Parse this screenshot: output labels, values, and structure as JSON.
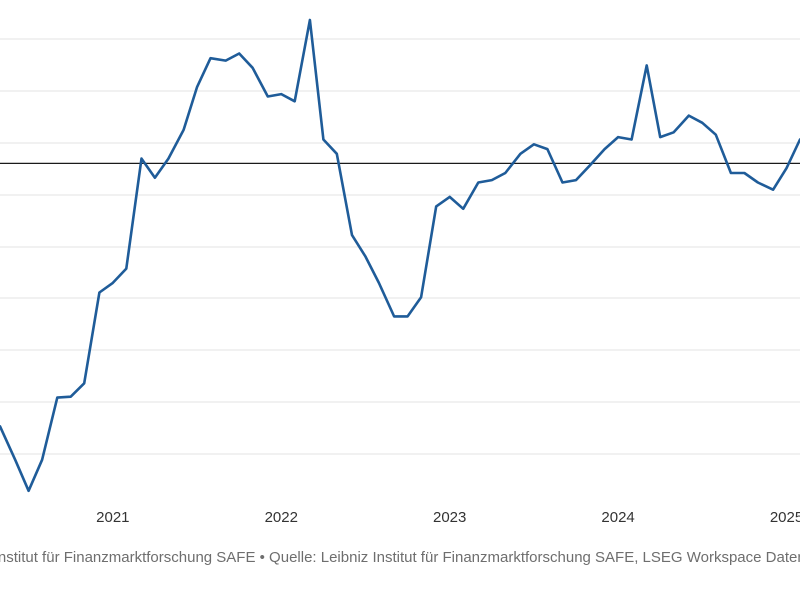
{
  "chart_data": {
    "type": "line",
    "x_tick_labels": [
      "2021",
      "2022",
      "2023",
      "2024",
      "2025"
    ],
    "x_range": [
      2020.33,
      2025.08
    ],
    "y_range": [
      0,
      100
    ],
    "reference_value": 70,
    "grid": true,
    "series": [
      {
        "color": "#1f5c99",
        "x": [
          2020.33,
          2020.42,
          2020.5,
          2020.58,
          2020.67,
          2020.75,
          2020.83,
          2020.92,
          2021.0,
          2021.08,
          2021.17,
          2021.25,
          2021.33,
          2021.42,
          2021.5,
          2021.58,
          2021.67,
          2021.75,
          2021.83,
          2021.92,
          2022.0,
          2022.08,
          2022.17,
          2022.25,
          2022.33,
          2022.42,
          2022.5,
          2022.58,
          2022.67,
          2022.75,
          2022.83,
          2022.92,
          2023.0,
          2023.08,
          2023.17,
          2023.25,
          2023.33,
          2023.42,
          2023.5,
          2023.58,
          2023.67,
          2023.75,
          2023.83,
          2023.92,
          2024.0,
          2024.08,
          2024.17,
          2024.25,
          2024.33,
          2024.42,
          2024.5,
          2024.58,
          2024.67,
          2024.75,
          2024.83,
          2024.92,
          2025.0,
          2025.08
        ],
        "y": [
          15,
          8,
          1.5,
          8,
          21,
          21.2,
          24,
          43,
          45,
          48,
          71,
          67,
          71,
          77,
          86,
          92,
          91.5,
          93,
          90,
          84,
          84.5,
          83,
          100,
          75,
          72,
          55,
          50.5,
          45,
          38,
          38,
          42,
          61,
          63,
          60.5,
          66,
          66.5,
          68,
          72,
          74,
          73,
          66,
          66.5,
          69.5,
          73,
          75.5,
          75,
          90.5,
          75.5,
          76.5,
          80,
          78.5,
          76,
          68,
          68,
          66,
          64.5,
          69,
          75
        ]
      }
    ]
  },
  "footer": {
    "text": "Leibniz Institut für Finanzmarktforschung SAFE • Quelle: Leibniz Institut für Finanzmarktforschung SAFE, LSEG Workspace Datenbank • Erstellt mit Datawrapper"
  }
}
